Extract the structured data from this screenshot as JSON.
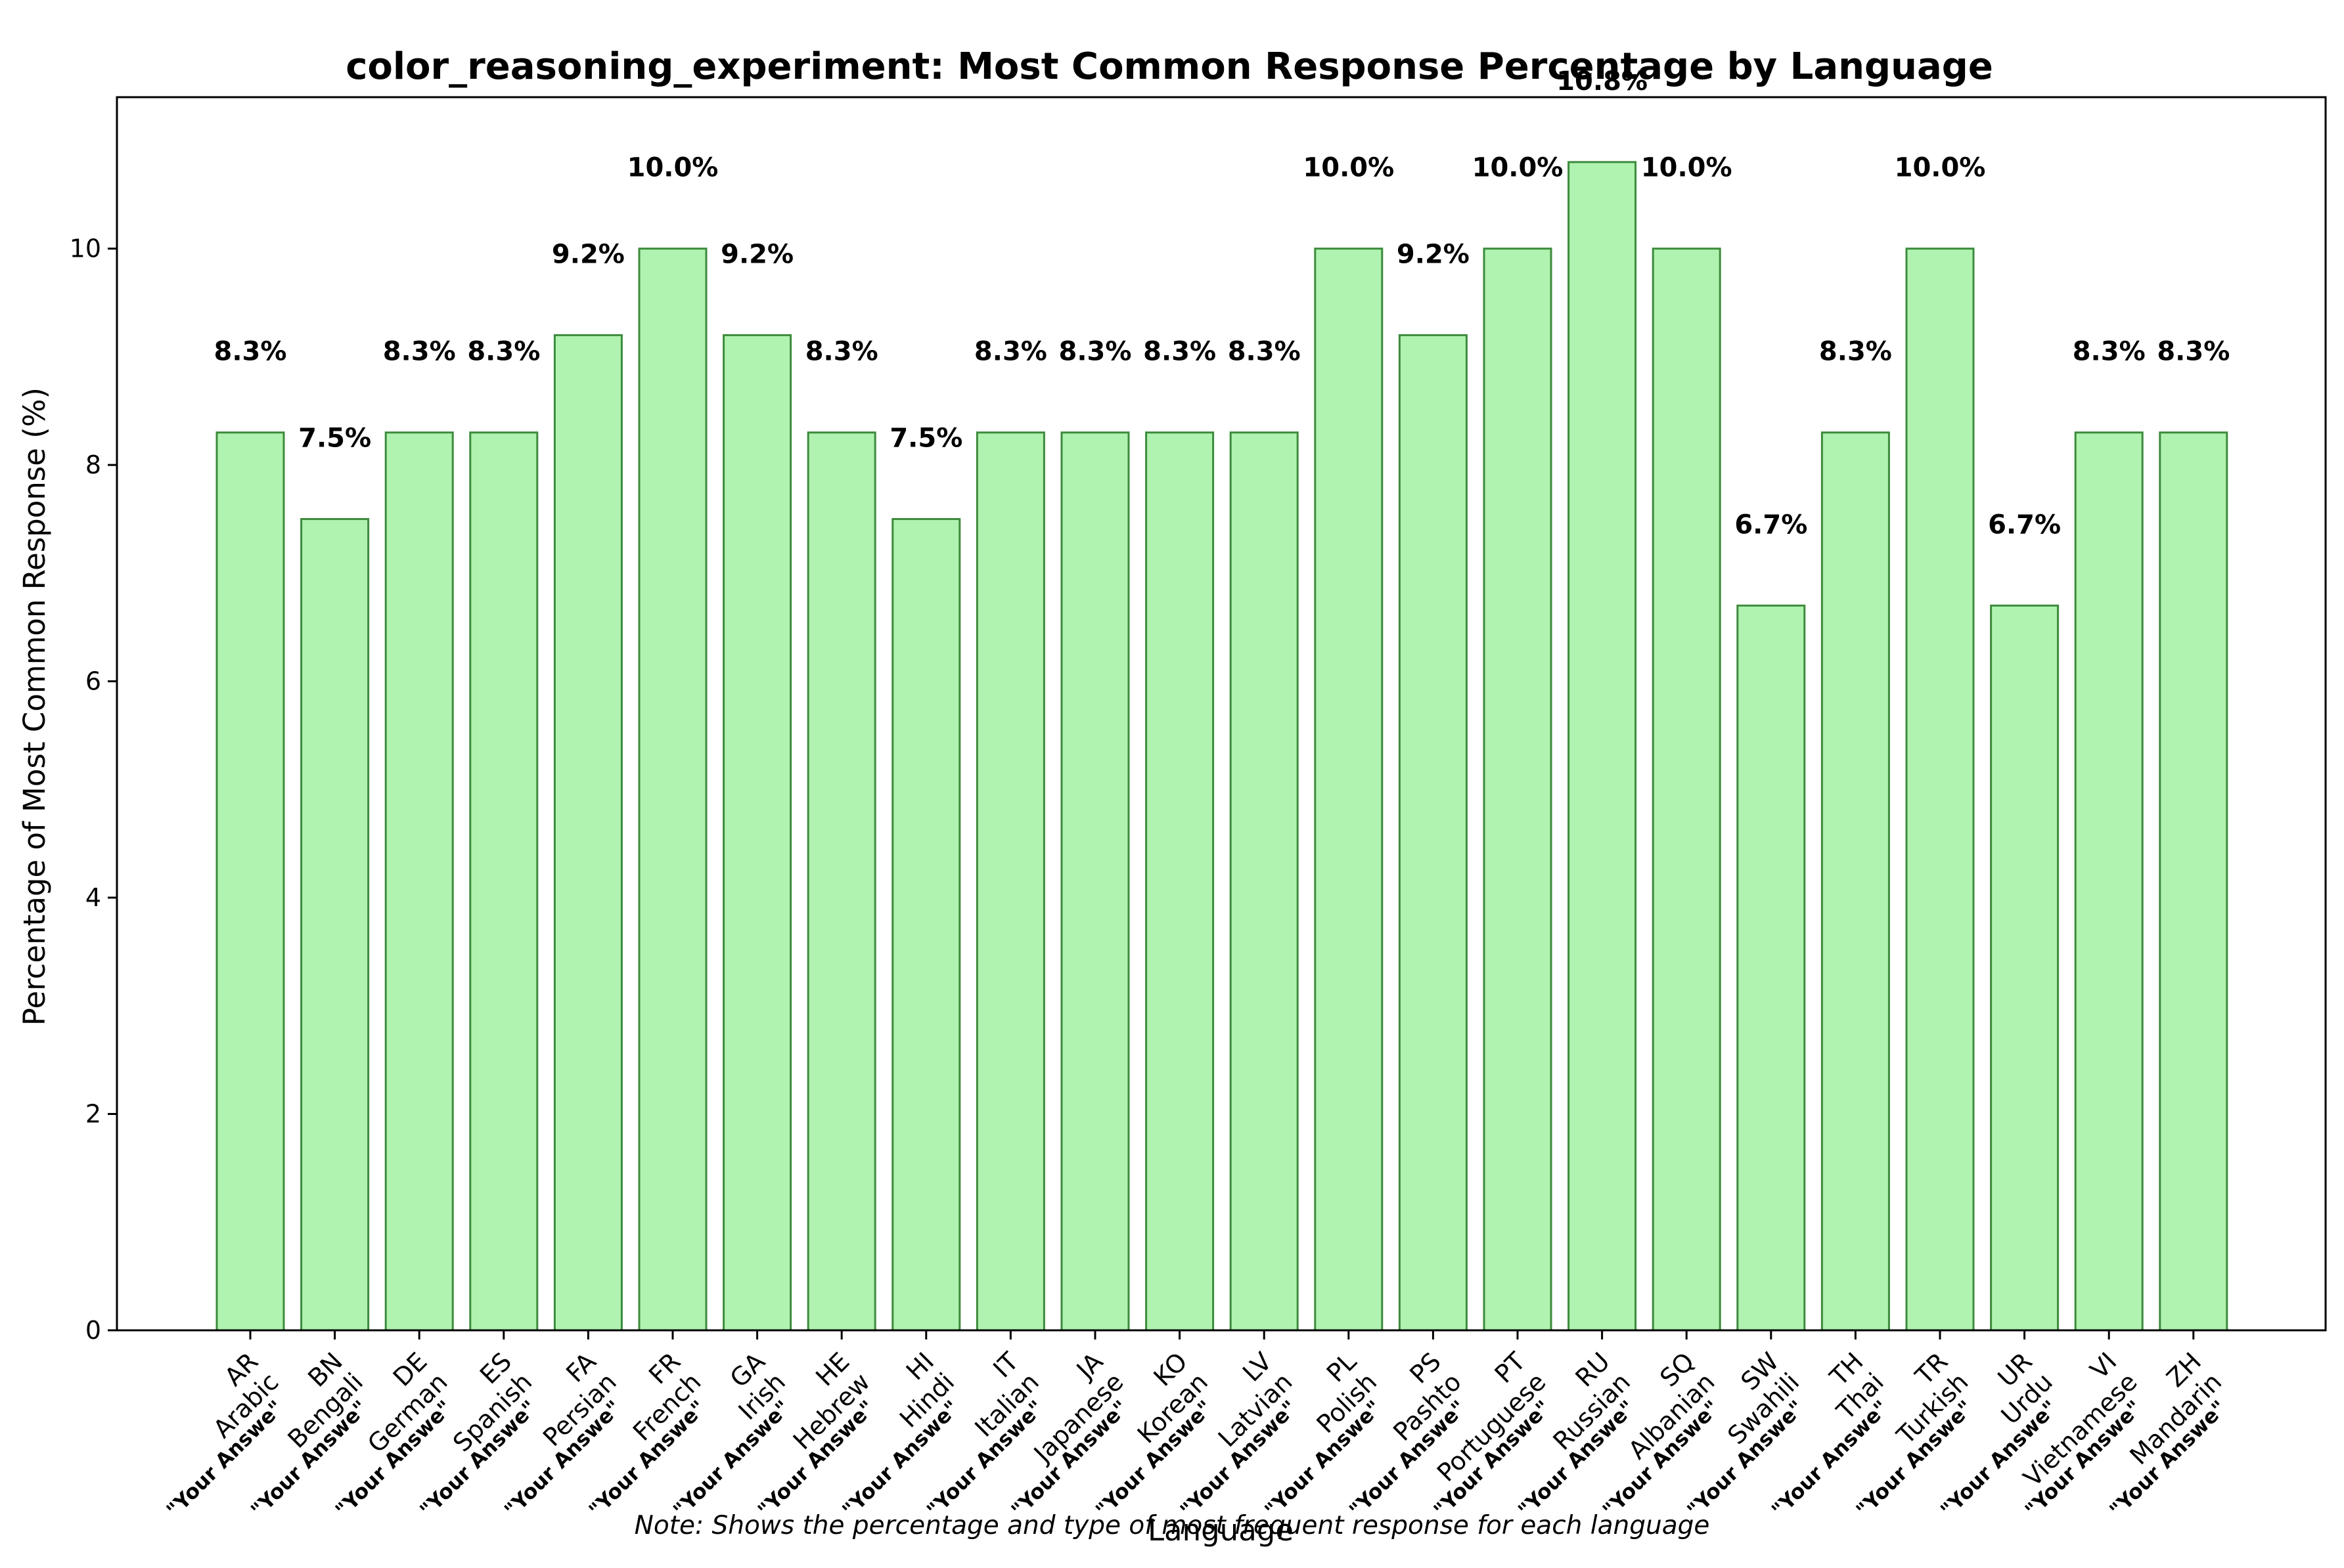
{
  "chart_data": {
    "type": "bar",
    "title": "color_reasoning_experiment: Most Common Response Percentage by Language",
    "xlabel": "Language",
    "ylabel": "Percentage of Most Common Response (%)",
    "note": "Note: Shows the percentage and type of most frequent response for each language",
    "ylim": [
      0,
      11.4
    ],
    "yticks": [
      0,
      2,
      4,
      6,
      8,
      10
    ],
    "grid": false,
    "categories": [
      "AR\nArabic",
      "BN\nBengali",
      "DE\nGerman",
      "ES\nSpanish",
      "FA\nPersian",
      "FR\nFrench",
      "GA\nIrish",
      "HE\nHebrew",
      "HI\nHindi",
      "IT\nItalian",
      "JA\nJapanese",
      "KO\nKorean",
      "LV\nLatvian",
      "PL\nPolish",
      "PS\nPashto",
      "PT\nPortuguese",
      "RU\nRussian",
      "SQ\nAlbanian",
      "SW\nSwahili",
      "TH\nThai",
      "TR\nTurkish",
      "UR\nUrdu",
      "VI\nVietnamese",
      "ZH\nMandarin"
    ],
    "values": [
      8.3,
      7.5,
      8.3,
      8.3,
      9.2,
      10.0,
      9.2,
      8.3,
      7.5,
      8.3,
      8.3,
      8.3,
      8.3,
      10.0,
      9.2,
      10.0,
      10.8,
      10.0,
      6.7,
      8.3,
      10.0,
      6.7,
      8.3,
      8.3
    ],
    "value_labels": [
      "8.3%",
      "7.5%",
      "8.3%",
      "8.3%",
      "9.2%",
      "10.0%",
      "9.2%",
      "8.3%",
      "7.5%",
      "8.3%",
      "8.3%",
      "8.3%",
      "8.3%",
      "10.0%",
      "9.2%",
      "10.0%",
      "10.8%",
      "10.0%",
      "6.7%",
      "8.3%",
      "10.0%",
      "6.7%",
      "8.3%",
      "8.3%"
    ],
    "response_labels": [
      "\"Your Answe\"",
      "\"Your Answe\"",
      "\"Your Answe\"",
      "\"Your Answe\"",
      "\"Your Answe\"",
      "\"Your Answe\"",
      "\"Your Answe\"",
      "\"Your Answe\"",
      "\"Your Answe\"",
      "\"Your Answe\"",
      "\"Your Answe\"",
      "\"Your Answe\"",
      "\"Your Answe\"",
      "\"Your Answe\"",
      "\"Your Answe\"",
      "\"Your Answe\"",
      "\"Your Answe\"",
      "\"Your Answe\"",
      "\"Your Answe\"",
      "\"Your Answe\"",
      "\"Your Answe\"",
      "\"Your Answe\"",
      "\"Your Answe\"",
      "\"Your Answe\""
    ],
    "colors": {
      "bar_fill": "#b0f2b0",
      "bar_edge": "#3d8b3d"
    }
  }
}
